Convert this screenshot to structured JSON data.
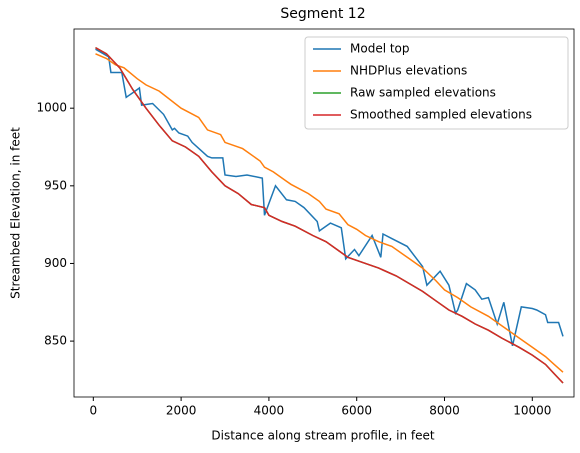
{
  "chart_data": {
    "type": "line",
    "title": "Segment 12",
    "xlabel": "Distance along stream profile, in feet",
    "ylabel": "Streambed Elevation, in feet",
    "xlim": [
      -440,
      10950
    ],
    "xticks": [
      0,
      2000,
      4000,
      6000,
      8000,
      10000
    ],
    "ylim": [
      814,
      1051
    ],
    "yticks": [
      850,
      900,
      950,
      1000
    ],
    "legend": "upper right",
    "series": [
      {
        "name": "Model top",
        "color": "#1f77b4",
        "x": [
          50,
          350,
          400,
          650,
          750,
          900,
          1050,
          1100,
          1350,
          1600,
          1800,
          1850,
          1950,
          2150,
          2250,
          2600,
          2700,
          2950,
          3000,
          3250,
          3500,
          3850,
          3900,
          4150,
          4400,
          4600,
          4800,
          5100,
          5150,
          5400,
          5650,
          5750,
          5950,
          6050,
          6350,
          6550,
          6600,
          6800,
          7150,
          7500,
          7600,
          7900,
          8100,
          8250,
          8300,
          8500,
          8700,
          8850,
          9000,
          9200,
          9350,
          9550,
          9750,
          10000,
          10100,
          10300,
          10350,
          10600,
          10700
        ],
        "values": [
          1038,
          1033,
          1023,
          1023,
          1007,
          1010,
          1013,
          1002,
          1003,
          996,
          986,
          987,
          984,
          982,
          978,
          969,
          968,
          968,
          957,
          956,
          957,
          955,
          931,
          950,
          941,
          940,
          936,
          927,
          921,
          926,
          923,
          903,
          909,
          905,
          918,
          904,
          919,
          916,
          911,
          898,
          886,
          895,
          886,
          868,
          870,
          887,
          883,
          877,
          878,
          861,
          875,
          847,
          872,
          871,
          870,
          867,
          862,
          862,
          853
        ]
      },
      {
        "name": "NHDPlus elevations",
        "color": "#ff7f0e",
        "x": [
          50,
          300,
          500,
          700,
          1000,
          1200,
          1500,
          2000,
          2200,
          2400,
          2600,
          2900,
          3000,
          3400,
          3800,
          3900,
          4100,
          4400,
          4500,
          4900,
          5150,
          5300,
          5600,
          5800,
          6000,
          6200,
          6500,
          6800,
          7200,
          7500,
          7800,
          8000,
          8300,
          8600,
          9000,
          9300,
          9700,
          10000,
          10300,
          10500,
          10700
        ],
        "values": [
          1035,
          1032,
          1028,
          1026,
          1019,
          1015,
          1011,
          1000,
          997,
          994,
          986,
          983,
          978,
          974,
          966,
          962,
          959,
          953,
          951,
          945,
          940,
          935,
          932,
          925,
          922,
          918,
          914,
          911,
          903,
          897,
          889,
          883,
          878,
          872,
          866,
          860,
          852,
          846,
          840,
          835,
          830
        ]
      },
      {
        "name": "Raw sampled elevations",
        "color": "#2ca02c",
        "x": [
          50,
          300,
          600,
          900,
          1200,
          1500,
          1800,
          2100,
          2400,
          2700,
          3000,
          3300,
          3600,
          3900,
          4000,
          4300,
          4600,
          5000,
          5300,
          5600,
          5800,
          6100,
          6500,
          6900,
          7200,
          7500,
          7800,
          8100,
          8400,
          8700,
          9000,
          9300,
          9700,
          10000,
          10300,
          10500,
          10700
        ],
        "values": [
          1039,
          1035,
          1026,
          1012,
          1000,
          989,
          979,
          975,
          969,
          959,
          950,
          945,
          938,
          936,
          931,
          927,
          924,
          918,
          914,
          908,
          904,
          901,
          897,
          892,
          887,
          882,
          876,
          870,
          866,
          861,
          857,
          852,
          846,
          841,
          835,
          829,
          823
        ]
      },
      {
        "name": "Smoothed sampled elevations",
        "color": "#d62728",
        "x": [
          50,
          300,
          600,
          900,
          1200,
          1500,
          1800,
          2100,
          2400,
          2700,
          3000,
          3300,
          3600,
          3900,
          4000,
          4300,
          4600,
          5000,
          5300,
          5600,
          5800,
          6100,
          6500,
          6900,
          7200,
          7500,
          7800,
          8100,
          8400,
          8700,
          9000,
          9300,
          9700,
          10000,
          10300,
          10500,
          10700
        ],
        "values": [
          1039,
          1035,
          1026,
          1012,
          1000,
          989,
          979,
          975,
          969,
          959,
          950,
          945,
          938,
          936,
          931,
          927,
          924,
          918,
          914,
          908,
          904,
          901,
          897,
          892,
          887,
          882,
          876,
          870,
          866,
          861,
          857,
          852,
          846,
          841,
          835,
          829,
          823
        ]
      }
    ]
  }
}
